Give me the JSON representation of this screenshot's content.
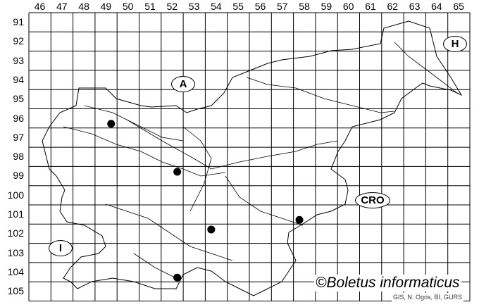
{
  "grid": {
    "columns": [
      "46",
      "47",
      "48",
      "49",
      "50",
      "51",
      "52",
      "53",
      "54",
      "55",
      "56",
      "57",
      "58",
      "59",
      "60",
      "61",
      "62",
      "63",
      "64",
      "65"
    ],
    "rows": [
      "91",
      "92",
      "93",
      "94",
      "95",
      "96",
      "97",
      "98",
      "99",
      "100",
      "101",
      "102",
      "103",
      "104",
      "105"
    ]
  },
  "country_labels": {
    "austria": "A",
    "hungary": "H",
    "croatia": "CRO",
    "italy": "I"
  },
  "records": [
    {
      "row": "96",
      "column": "49",
      "quadrant": 4
    },
    {
      "row": "99",
      "column": "52",
      "quadrant": 2
    },
    {
      "row": "102",
      "column": "54",
      "quadrant": 1
    },
    {
      "row": "101",
      "column": "58",
      "quadrant": 3
    },
    {
      "row": "104",
      "column": "52",
      "quadrant": 4
    }
  ],
  "credit": "©Boletus informaticus",
  "source": "GIS, N. Ogris, BI, GURS",
  "colors": {
    "lines": "#000000",
    "dots": "#000000"
  }
}
